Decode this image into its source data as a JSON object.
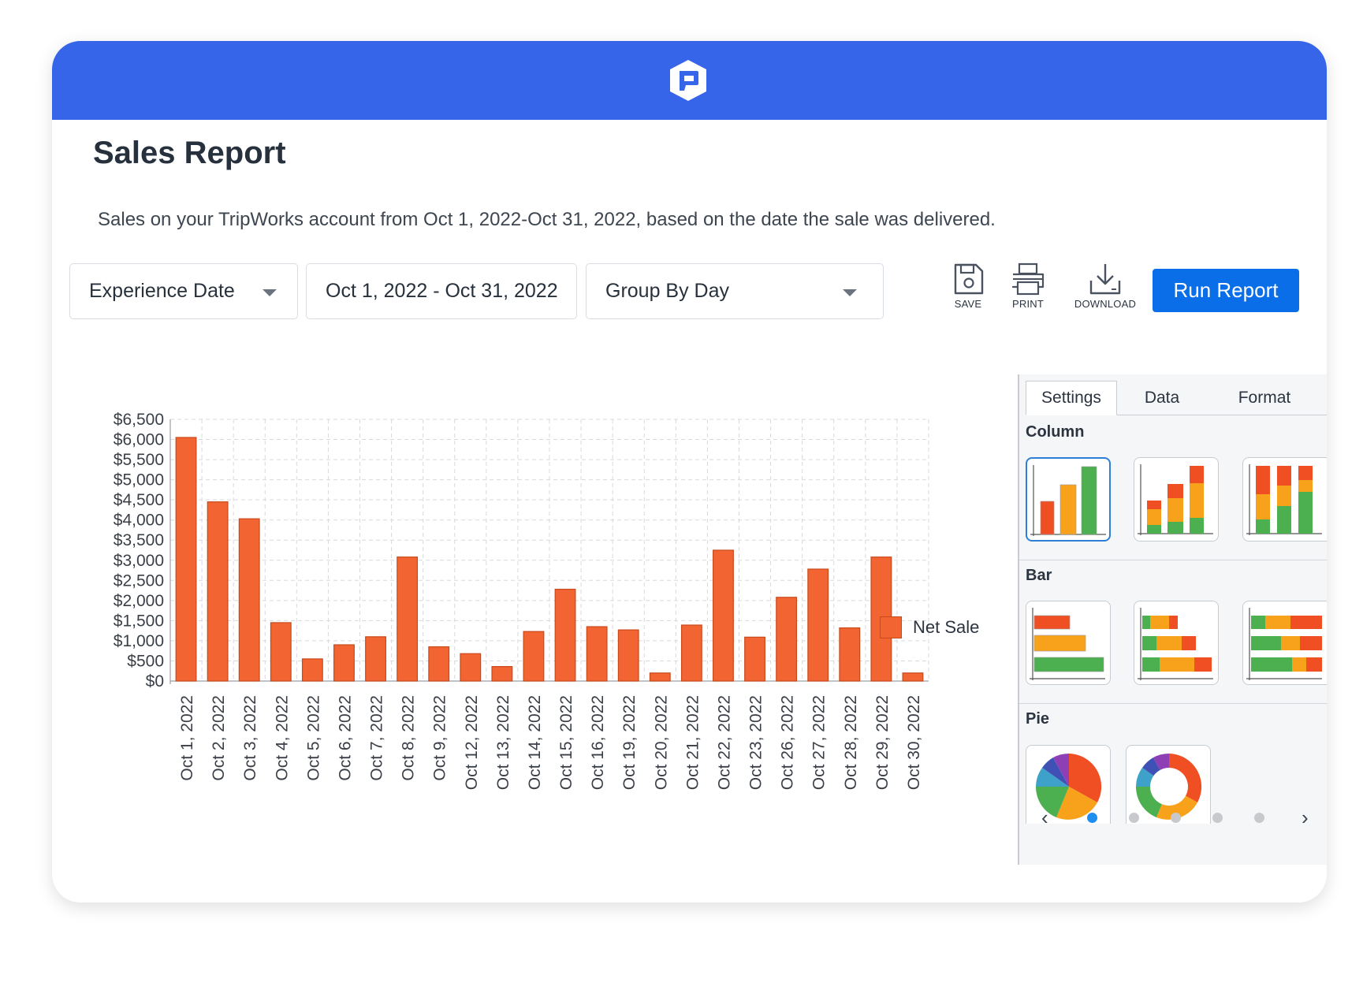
{
  "header": {
    "title": "Sales Report",
    "subtitle": "Sales on your TripWorks account from Oct 1, 2022-Oct 31, 2022, based on the date the sale was delivered."
  },
  "filters": {
    "date_type": "Experience Date",
    "date_range": "Oct 1, 2022 - Oct 31, 2022",
    "group_by": "Group By Day"
  },
  "toolbar": {
    "save_label": "SAVE",
    "print_label": "PRINT",
    "download_label": "DOWNLOAD",
    "run_label": "Run Report"
  },
  "colors": {
    "brand": "#3665ea",
    "accent": "#0a6ee9",
    "bar": "#f26532",
    "green": "#4caf50",
    "orange": "#f8a21c",
    "red": "#f04e23"
  },
  "legend": {
    "label": "Net Sale"
  },
  "panel": {
    "tabs": [
      "Settings",
      "Data",
      "Format"
    ],
    "active_tab": "Settings",
    "sections": {
      "column": "Column",
      "bar": "Bar",
      "pie": "Pie"
    },
    "pager": {
      "prev": "‹",
      "next": "›",
      "pages": 5,
      "current": 1
    }
  },
  "chart_data": {
    "type": "bar",
    "categories": [
      "Oct 1, 2022",
      "Oct 2, 2022",
      "Oct 3, 2022",
      "Oct 4, 2022",
      "Oct 5, 2022",
      "Oct 6, 2022",
      "Oct 7, 2022",
      "Oct 8, 2022",
      "Oct 9, 2022",
      "Oct 12, 2022",
      "Oct 13, 2022",
      "Oct 14, 2022",
      "Oct 15, 2022",
      "Oct 16, 2022",
      "Oct 19, 2022",
      "Oct 20, 2022",
      "Oct 21, 2022",
      "Oct 22, 2022",
      "Oct 23, 2022",
      "Oct 26, 2022",
      "Oct 27, 2022",
      "Oct 28, 2022",
      "Oct 29, 2022",
      "Oct 30, 2022"
    ],
    "series": [
      {
        "name": "Net Sale",
        "values": [
          6050,
          4450,
          4030,
          1450,
          550,
          900,
          1100,
          3080,
          850,
          680,
          360,
          1230,
          2280,
          1350,
          1270,
          200,
          1390,
          3250,
          1090,
          2080,
          2780,
          1320,
          3080,
          200
        ]
      }
    ],
    "yticks": [
      "$0",
      "$500",
      "$1,000",
      "$1,500",
      "$2,000",
      "$2,500",
      "$3,000",
      "$3,500",
      "$4,000",
      "$4,500",
      "$5,000",
      "$5,500",
      "$6,000",
      "$6,500"
    ],
    "ylim": [
      0,
      6500
    ],
    "grid": true,
    "legend_position": "right"
  }
}
